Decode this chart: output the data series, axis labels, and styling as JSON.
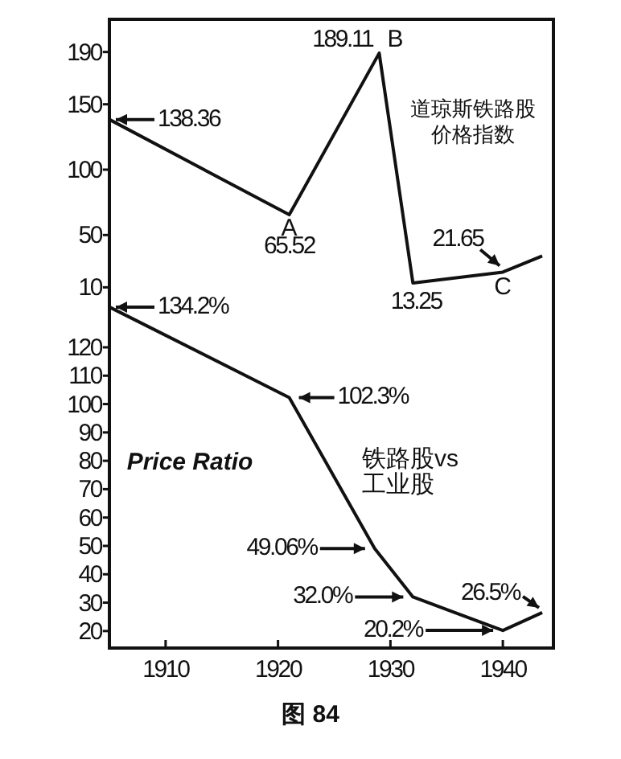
{
  "chart_data": [
    {
      "type": "line",
      "x": [
        1905,
        1921,
        1929,
        1932,
        1940,
        1943.5
      ],
      "values": [
        138.36,
        65.52,
        189.11,
        13.25,
        21.65,
        34
      ],
      "color": "#111111",
      "value_labels": [
        "138.36",
        "65.52",
        "189.11",
        "13.25",
        "21.65",
        null
      ],
      "xlim": [
        1905,
        1944.5
      ],
      "ylim": [
        1,
        215
      ],
      "yticks": [
        10,
        50,
        100,
        150,
        190
      ],
      "tick_labels": "y",
      "annotations": [
        {
          "text": "A",
          "x": 1921,
          "y": 65.52
        },
        {
          "text": "B",
          "x": 1929,
          "y": 189.11
        },
        {
          "text": "C",
          "x": 1940,
          "y": 21.65
        },
        "道琼斯铁路股",
        "价格指数"
      ]
    },
    {
      "type": "line",
      "x": [
        1905,
        1921,
        1928.6,
        1932,
        1940,
        1943.5
      ],
      "values": [
        134.2,
        102.3,
        49.06,
        32.0,
        20.2,
        26.5
      ],
      "color": "#111111",
      "value_labels": [
        "134.2%",
        "102.3%",
        "49.06%",
        "32.0%",
        "20.2%",
        "26.5%"
      ],
      "xlim": [
        1905,
        1944.5
      ],
      "xticks": [
        1910,
        1920,
        1930,
        1940
      ],
      "ylim": [
        14,
        137
      ],
      "yticks": [
        20,
        30,
        40,
        50,
        60,
        70,
        80,
        90,
        100,
        110,
        120
      ],
      "annotations": [
        "Price Ratio",
        "铁路股vs",
        "工业股",
        "图 84"
      ]
    }
  ]
}
